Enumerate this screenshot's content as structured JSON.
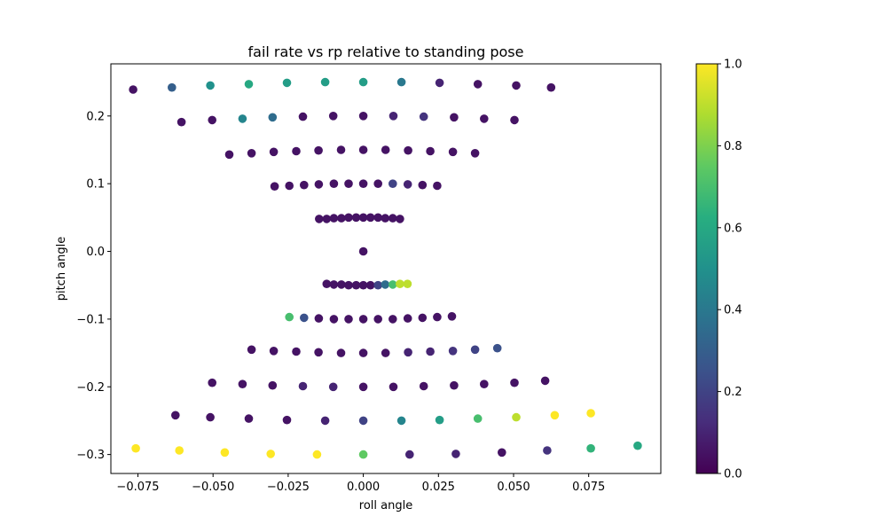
{
  "chart_data": {
    "type": "scatter",
    "title": "fail rate vs rp relative to standing pose",
    "xlabel": "roll angle",
    "ylabel": "pitch angle",
    "xlim": [
      -0.084,
      0.099
    ],
    "ylim": [
      -0.328,
      0.277
    ],
    "xticks": [
      -0.075,
      -0.05,
      -0.025,
      0.0,
      0.025,
      0.05,
      0.075
    ],
    "xtick_labels": [
      "−0.075",
      "−0.050",
      "−0.025",
      "0.000",
      "0.025",
      "0.050",
      "0.075"
    ],
    "yticks": [
      -0.3,
      -0.2,
      -0.1,
      0.0,
      0.1,
      0.2
    ],
    "ytick_labels": [
      "−0.3",
      "−0.2",
      "−0.1",
      "0.0",
      "0.1",
      "0.2"
    ],
    "grid": false,
    "colormap": "viridis",
    "colorbar": {
      "range": [
        0,
        1
      ],
      "ticks": [
        0.0,
        0.2,
        0.4,
        0.6,
        0.8,
        1.0
      ],
      "tick_labels": [
        "0.0",
        "0.2",
        "0.4",
        "0.6",
        "0.8",
        "1.0"
      ]
    },
    "points": [
      [
        -0.0766,
        0.239,
        0.05
      ],
      [
        -0.0637,
        0.242,
        0.3
      ],
      [
        -0.0509,
        0.245,
        0.5
      ],
      [
        -0.0381,
        0.247,
        0.6
      ],
      [
        -0.0254,
        0.249,
        0.55
      ],
      [
        -0.0127,
        0.25,
        0.55
      ],
      [
        0.0,
        0.25,
        0.55
      ],
      [
        0.0127,
        0.25,
        0.4
      ],
      [
        0.0254,
        0.249,
        0.1
      ],
      [
        0.0381,
        0.247,
        0.05
      ],
      [
        0.0509,
        0.245,
        0.05
      ],
      [
        0.0625,
        0.242,
        0.05
      ],
      [
        -0.0605,
        0.191,
        0.05
      ],
      [
        -0.0503,
        0.194,
        0.05
      ],
      [
        -0.0402,
        0.196,
        0.45
      ],
      [
        -0.0302,
        0.198,
        0.35
      ],
      [
        -0.0201,
        0.199,
        0.05
      ],
      [
        -0.01,
        0.2,
        0.05
      ],
      [
        0.0,
        0.2,
        0.05
      ],
      [
        0.01,
        0.2,
        0.1
      ],
      [
        0.0201,
        0.199,
        0.15
      ],
      [
        0.0302,
        0.198,
        0.05
      ],
      [
        0.0402,
        0.196,
        0.05
      ],
      [
        0.0503,
        0.194,
        0.05
      ],
      [
        -0.0446,
        0.143,
        0.05
      ],
      [
        -0.0372,
        0.145,
        0.05
      ],
      [
        -0.0298,
        0.147,
        0.05
      ],
      [
        -0.0223,
        0.148,
        0.05
      ],
      [
        -0.0149,
        0.149,
        0.05
      ],
      [
        -0.0074,
        0.15,
        0.05
      ],
      [
        0.0,
        0.15,
        0.05
      ],
      [
        0.0074,
        0.15,
        0.05
      ],
      [
        0.0149,
        0.149,
        0.05
      ],
      [
        0.0223,
        0.148,
        0.05
      ],
      [
        0.0298,
        0.147,
        0.05
      ],
      [
        0.0372,
        0.145,
        0.05
      ],
      [
        -0.0295,
        0.096,
        0.05
      ],
      [
        -0.0246,
        0.097,
        0.05
      ],
      [
        -0.0197,
        0.098,
        0.05
      ],
      [
        -0.0148,
        0.099,
        0.05
      ],
      [
        -0.0098,
        0.1,
        0.05
      ],
      [
        -0.0049,
        0.1,
        0.05
      ],
      [
        0.0,
        0.1,
        0.05
      ],
      [
        0.0049,
        0.1,
        0.05
      ],
      [
        0.0098,
        0.1,
        0.2
      ],
      [
        0.0148,
        0.099,
        0.1
      ],
      [
        0.0197,
        0.098,
        0.05
      ],
      [
        0.0246,
        0.097,
        0.05
      ],
      [
        -0.0147,
        0.048,
        0.05
      ],
      [
        -0.0122,
        0.048,
        0.05
      ],
      [
        -0.0098,
        0.049,
        0.05
      ],
      [
        -0.0073,
        0.049,
        0.05
      ],
      [
        -0.0049,
        0.05,
        0.05
      ],
      [
        -0.0024,
        0.05,
        0.05
      ],
      [
        0.0,
        0.05,
        0.05
      ],
      [
        0.0024,
        0.05,
        0.05
      ],
      [
        0.0049,
        0.05,
        0.05
      ],
      [
        0.0073,
        0.049,
        0.05
      ],
      [
        0.0098,
        0.049,
        0.05
      ],
      [
        0.0122,
        0.048,
        0.05
      ],
      [
        0.0,
        0.0,
        0.05
      ],
      [
        -0.0122,
        -0.048,
        0.05
      ],
      [
        -0.0098,
        -0.049,
        0.05
      ],
      [
        -0.0073,
        -0.049,
        0.05
      ],
      [
        -0.0049,
        -0.05,
        0.05
      ],
      [
        -0.0024,
        -0.05,
        0.05
      ],
      [
        0.0,
        -0.05,
        0.05
      ],
      [
        0.0024,
        -0.05,
        0.05
      ],
      [
        0.0049,
        -0.05,
        0.2
      ],
      [
        0.0073,
        -0.049,
        0.35
      ],
      [
        0.0098,
        -0.049,
        0.7
      ],
      [
        0.0122,
        -0.048,
        0.9
      ],
      [
        0.0147,
        -0.048,
        0.9
      ],
      [
        -0.0246,
        -0.097,
        0.7
      ],
      [
        -0.0197,
        -0.098,
        0.25
      ],
      [
        -0.0148,
        -0.099,
        0.05
      ],
      [
        -0.0098,
        -0.1,
        0.05
      ],
      [
        -0.0049,
        -0.1,
        0.05
      ],
      [
        0.0,
        -0.1,
        0.05
      ],
      [
        0.0049,
        -0.1,
        0.05
      ],
      [
        0.0098,
        -0.1,
        0.05
      ],
      [
        0.0148,
        -0.099,
        0.05
      ],
      [
        0.0197,
        -0.098,
        0.05
      ],
      [
        0.0246,
        -0.097,
        0.05
      ],
      [
        0.0295,
        -0.096,
        0.05
      ],
      [
        -0.0372,
        -0.145,
        0.05
      ],
      [
        -0.0298,
        -0.147,
        0.05
      ],
      [
        -0.0223,
        -0.148,
        0.05
      ],
      [
        -0.0149,
        -0.149,
        0.05
      ],
      [
        -0.0074,
        -0.15,
        0.05
      ],
      [
        0.0,
        -0.15,
        0.05
      ],
      [
        0.0074,
        -0.15,
        0.05
      ],
      [
        0.0149,
        -0.149,
        0.1
      ],
      [
        0.0223,
        -0.148,
        0.1
      ],
      [
        0.0298,
        -0.147,
        0.15
      ],
      [
        0.0372,
        -0.145,
        0.2
      ],
      [
        0.0446,
        -0.143,
        0.25
      ],
      [
        -0.0503,
        -0.194,
        0.05
      ],
      [
        -0.0402,
        -0.196,
        0.05
      ],
      [
        -0.0302,
        -0.198,
        0.05
      ],
      [
        -0.0201,
        -0.199,
        0.1
      ],
      [
        -0.01,
        -0.2,
        0.1
      ],
      [
        0.0,
        -0.2,
        0.05
      ],
      [
        0.01,
        -0.2,
        0.05
      ],
      [
        0.0201,
        -0.199,
        0.05
      ],
      [
        0.0302,
        -0.198,
        0.05
      ],
      [
        0.0402,
        -0.196,
        0.05
      ],
      [
        0.0503,
        -0.194,
        0.05
      ],
      [
        0.0605,
        -0.191,
        0.05
      ],
      [
        -0.0625,
        -0.242,
        0.05
      ],
      [
        -0.0509,
        -0.245,
        0.05
      ],
      [
        -0.0381,
        -0.247,
        0.05
      ],
      [
        -0.0254,
        -0.249,
        0.05
      ],
      [
        -0.0127,
        -0.25,
        0.1
      ],
      [
        0.0,
        -0.25,
        0.2
      ],
      [
        0.0127,
        -0.25,
        0.45
      ],
      [
        0.0254,
        -0.249,
        0.55
      ],
      [
        0.0381,
        -0.247,
        0.7
      ],
      [
        0.0509,
        -0.245,
        0.9
      ],
      [
        0.0637,
        -0.242,
        1.0
      ],
      [
        0.0757,
        -0.239,
        1.0
      ],
      [
        -0.0757,
        -0.291,
        1.0
      ],
      [
        -0.0612,
        -0.294,
        1.0
      ],
      [
        -0.0461,
        -0.297,
        1.0
      ],
      [
        -0.0308,
        -0.299,
        1.0
      ],
      [
        -0.0154,
        -0.3,
        1.0
      ],
      [
        0.0,
        -0.3,
        0.75
      ],
      [
        0.0154,
        -0.3,
        0.1
      ],
      [
        0.0308,
        -0.299,
        0.1
      ],
      [
        0.0461,
        -0.297,
        0.05
      ],
      [
        0.0612,
        -0.294,
        0.15
      ],
      [
        0.0757,
        -0.291,
        0.65
      ],
      [
        0.0913,
        -0.287,
        0.6
      ]
    ]
  }
}
